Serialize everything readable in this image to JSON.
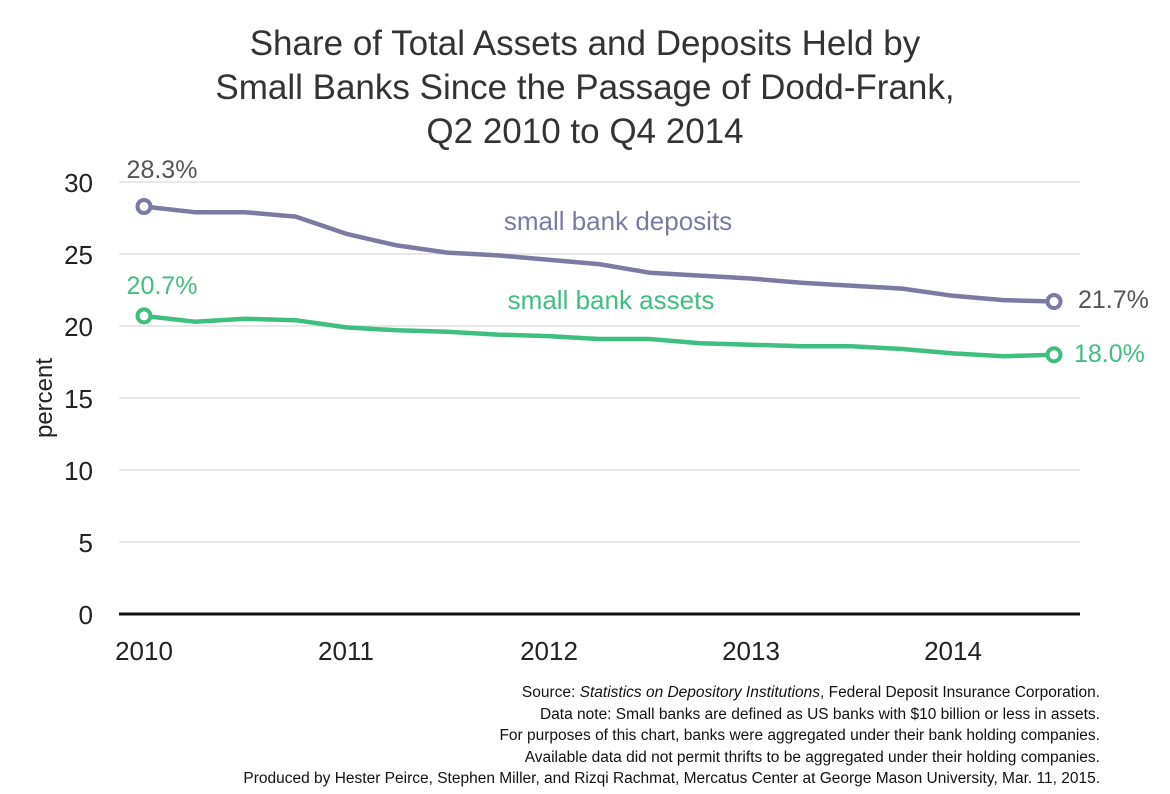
{
  "chart_data": {
    "type": "line",
    "title_lines": [
      "Share of Total Assets and Deposits Held by",
      "Small Banks Since the Passage of Dodd-Frank,",
      "Q2 2010 to Q4 2014"
    ],
    "ylabel": "percent",
    "ylim": [
      0,
      30
    ],
    "yticks": [
      0,
      5,
      10,
      15,
      20,
      25,
      30
    ],
    "xticks": [
      "2010",
      "2011",
      "2012",
      "2013",
      "2014"
    ],
    "grid": true,
    "x": [
      "Q2 2010",
      "Q3 2010",
      "Q4 2010",
      "Q1 2011",
      "Q2 2011",
      "Q3 2011",
      "Q4 2011",
      "Q1 2012",
      "Q2 2012",
      "Q3 2012",
      "Q4 2012",
      "Q1 2013",
      "Q2 2013",
      "Q3 2013",
      "Q4 2013",
      "Q1 2014",
      "Q2 2014",
      "Q3 2014",
      "Q4 2014"
    ],
    "series": [
      {
        "name": "small bank deposits",
        "color": "#7b7aa3",
        "values": [
          28.3,
          27.9,
          27.9,
          27.6,
          26.4,
          25.6,
          25.1,
          24.9,
          24.6,
          24.3,
          23.7,
          23.5,
          23.3,
          23.0,
          22.8,
          22.6,
          22.1,
          21.8,
          21.7
        ],
        "start_label": "28.3%",
        "end_label": "21.7%"
      },
      {
        "name": "small bank assets",
        "color": "#3fbf7f",
        "values": [
          20.7,
          20.3,
          20.5,
          20.4,
          19.9,
          19.7,
          19.6,
          19.4,
          19.3,
          19.1,
          19.1,
          18.8,
          18.7,
          18.6,
          18.6,
          18.4,
          18.1,
          17.9,
          18.0
        ],
        "start_label": "20.7%",
        "end_label": "18.0%"
      }
    ],
    "label_colors": {
      "deposits_start": "#555555",
      "deposits_end": "#555555"
    }
  },
  "source": {
    "prefix": "Source: ",
    "italic": "Statistics on Depository Institutions",
    "suffix": ", Federal Deposit Insurance Corporation.",
    "lines": [
      "Data note: Small banks are defined as US banks with $10 billion or less in assets.",
      "For purposes of this chart, banks were aggregated under their bank holding companies.",
      "Available data did not permit thrifts to be aggregated under their holding companies.",
      "Produced by Hester Peirce, Stephen Miller, and Rizqi Rachmat, Mercatus Center at George Mason University, Mar. 11, 2015."
    ]
  }
}
